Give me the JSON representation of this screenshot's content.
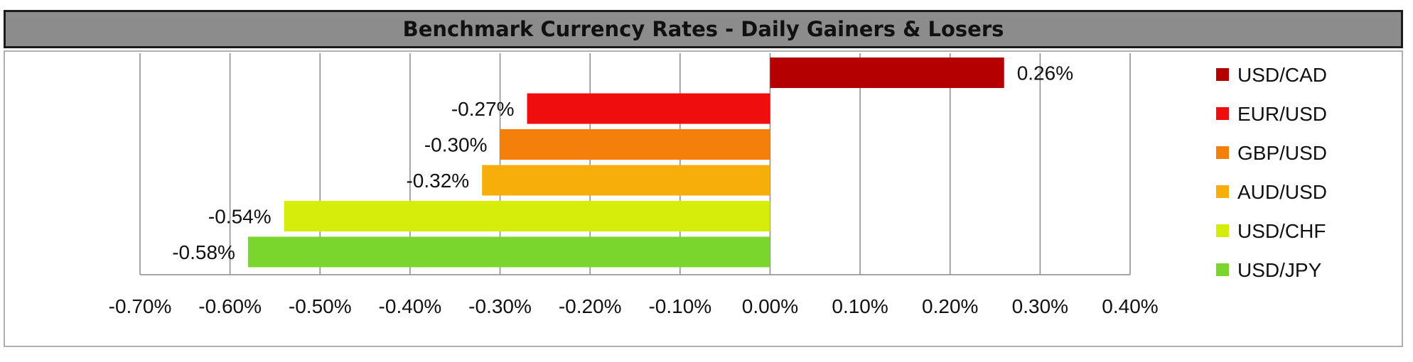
{
  "title": "Benchmark Currency Rates - Daily Gainers & Losers",
  "chart_data": {
    "type": "bar",
    "orientation": "horizontal",
    "title": "Benchmark Currency Rates - Daily Gainers & Losers",
    "xlabel": "",
    "ylabel": "",
    "xlim": [
      -0.7,
      0.4
    ],
    "x_ticks": [
      "-0.70%",
      "-0.60%",
      "-0.50%",
      "-0.40%",
      "-0.30%",
      "-0.20%",
      "-0.10%",
      "0.00%",
      "0.10%",
      "0.20%",
      "0.30%",
      "0.40%"
    ],
    "grid": "vertical",
    "legend_position": "right",
    "categories": [
      "USD/CAD",
      "EUR/USD",
      "GBP/USD",
      "AUD/USD",
      "USD/CHF",
      "USD/JPY"
    ],
    "values": [
      0.26,
      -0.27,
      -0.3,
      -0.32,
      -0.54,
      -0.58
    ],
    "data_labels": [
      "0.26%",
      "-0.27%",
      "-0.30%",
      "-0.32%",
      "-0.54%",
      "-0.58%"
    ],
    "colors": [
      "#b40000",
      "#ef0d0d",
      "#f57f0b",
      "#f7ae0a",
      "#d6ec0b",
      "#7ad52c"
    ]
  }
}
